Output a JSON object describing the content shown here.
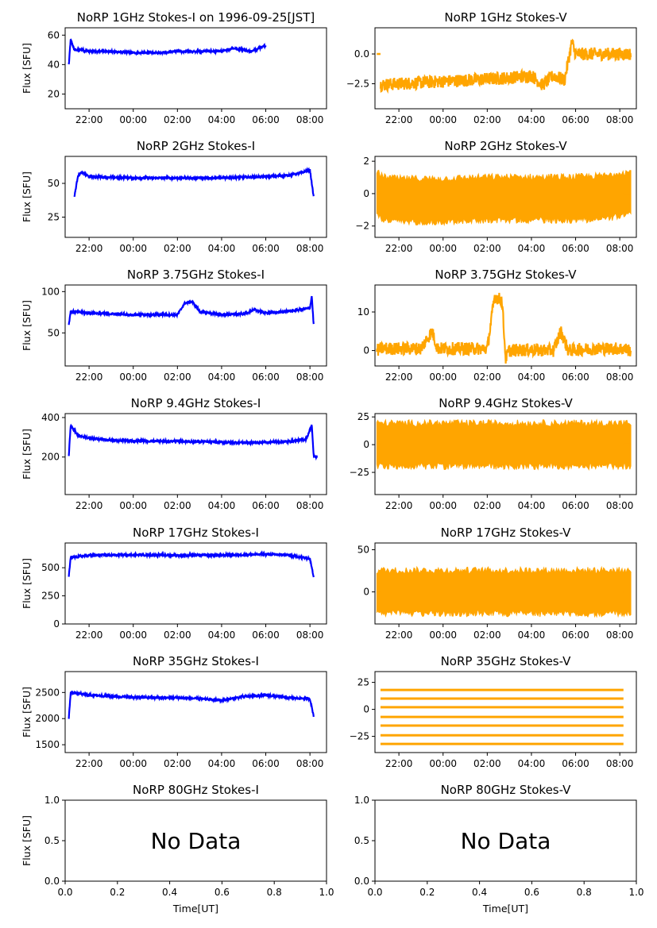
{
  "figure": {
    "main_title": "NoRP 1GHz Stokes-I on 1996-09-25[JST]",
    "colors": {
      "stokes_i": "#0000ff",
      "stokes_v": "#ffa500"
    }
  },
  "chart_data": [
    {
      "id": "p1i",
      "type": "line",
      "title": "NoRP 1GHz Stokes-I on 1996-09-25[JST]",
      "ylabel": "Flux [SFU]",
      "xlabel": "",
      "ylim": [
        10,
        65
      ],
      "yticks": [
        20,
        40,
        60
      ],
      "xticks": [
        "22:00",
        "00:00",
        "02:00",
        "04:00",
        "06:00",
        "08:00"
      ],
      "series": [
        {
          "x": [
            "21:05",
            "21:10",
            "21:20",
            "21:40",
            "22:00",
            "23:00",
            "00:00",
            "01:00",
            "02:00",
            "03:00",
            "04:00",
            "04:30",
            "05:00",
            "05:20",
            "05:40",
            "06:00"
          ],
          "y": [
            40,
            57,
            50,
            50,
            49,
            49,
            48,
            48,
            49,
            49,
            49,
            51,
            50,
            49,
            51,
            53
          ]
        }
      ]
    },
    {
      "id": "p1v",
      "type": "line",
      "title": "NoRP 1GHz Stokes-V",
      "ylabel": "",
      "xlabel": "",
      "ylim": [
        -4.6,
        2.2
      ],
      "yticks": [
        0.0,
        -2.5
      ],
      "ytick_labels": [
        "0.0",
        "−2.5"
      ],
      "xticks": [
        "22:00",
        "00:00",
        "02:00",
        "04:00",
        "06:00",
        "08:00"
      ],
      "series": [
        {
          "x": [
            "21:10",
            "22:00",
            "23:00",
            "00:00",
            "01:00",
            "02:00",
            "03:00",
            "04:00",
            "04:30",
            "05:00",
            "05:30",
            "05:50",
            "06:00",
            "08:30"
          ],
          "y": [
            -2.6,
            -2.5,
            -2.4,
            -2.3,
            -2.2,
            -2.1,
            -2.0,
            -1.8,
            -2.6,
            -1.8,
            -2.2,
            1.0,
            0.0,
            0.0
          ]
        }
      ]
    },
    {
      "id": "p2i",
      "type": "line",
      "title": "NoRP 2GHz Stokes-I",
      "ylabel": "Flux [SFU]",
      "xlabel": "",
      "ylim": [
        10,
        70
      ],
      "yticks": [
        25,
        50
      ],
      "xticks": [
        "22:00",
        "00:00",
        "02:00",
        "04:00",
        "06:00",
        "08:00"
      ],
      "series": [
        {
          "x": [
            "21:20",
            "21:30",
            "21:40",
            "22:00",
            "00:00",
            "02:00",
            "04:00",
            "06:00",
            "07:00",
            "07:40",
            "08:00",
            "08:10"
          ],
          "y": [
            40,
            56,
            58,
            55,
            54,
            54,
            54,
            55,
            56,
            58,
            60,
            40
          ]
        }
      ]
    },
    {
      "id": "p2v",
      "type": "line",
      "title": "NoRP 2GHz Stokes-V",
      "ylabel": "",
      "xlabel": "",
      "ylim": [
        -2.7,
        2.3
      ],
      "yticks": [
        2,
        0,
        -2
      ],
      "ytick_labels": [
        "2",
        "0",
        "−2"
      ],
      "xticks": [
        "22:00",
        "00:00",
        "02:00",
        "04:00",
        "06:00",
        "08:00"
      ],
      "series": [
        {
          "x": [
            "21:00",
            "21:20",
            "22:00",
            "00:00",
            "02:00",
            "04:00",
            "06:00",
            "07:30",
            "08:00",
            "08:30"
          ],
          "y": [
            0.0,
            -0.3,
            -0.4,
            -0.4,
            -0.3,
            -0.3,
            -0.3,
            -0.2,
            0.0,
            0.0
          ]
        }
      ]
    },
    {
      "id": "p3i",
      "type": "line",
      "title": "NoRP 3.75GHz Stokes-I",
      "ylabel": "Flux [SFU]",
      "xlabel": "",
      "ylim": [
        10,
        108
      ],
      "yticks": [
        50,
        100
      ],
      "xticks": [
        "22:00",
        "00:00",
        "02:00",
        "04:00",
        "06:00",
        "08:00"
      ],
      "series": [
        {
          "x": [
            "21:05",
            "21:10",
            "22:00",
            "23:00",
            "00:00",
            "01:00",
            "02:00",
            "02:20",
            "02:40",
            "03:00",
            "04:00",
            "05:00",
            "05:30",
            "06:00",
            "07:00",
            "08:00",
            "08:05",
            "08:10"
          ],
          "y": [
            60,
            76,
            74,
            73,
            72,
            72,
            72,
            86,
            88,
            76,
            72,
            73,
            78,
            74,
            76,
            80,
            95,
            60
          ]
        }
      ]
    },
    {
      "id": "p3v",
      "type": "line",
      "title": "NoRP 3.75GHz Stokes-V",
      "ylabel": "",
      "xlabel": "",
      "ylim": [
        -4,
        17
      ],
      "yticks": [
        10,
        0
      ],
      "xticks": [
        "22:00",
        "00:00",
        "02:00",
        "04:00",
        "06:00",
        "08:00"
      ],
      "series": [
        {
          "x": [
            "21:00",
            "21:10",
            "23:00",
            "23:30",
            "23:45",
            "00:00",
            "02:00",
            "02:20",
            "02:40",
            "02:50",
            "03:00",
            "04:00",
            "05:00",
            "05:20",
            "05:40",
            "06:00",
            "07:00",
            "08:10",
            "08:30"
          ],
          "y": [
            0,
            0.5,
            0.5,
            5,
            0.5,
            0.5,
            0.5,
            14,
            13,
            -2,
            0,
            0.2,
            0,
            5,
            0,
            0.2,
            0.5,
            0.5,
            0
          ]
        }
      ]
    },
    {
      "id": "p4i",
      "type": "line",
      "title": "NoRP 9.4GHz Stokes-I",
      "ylabel": "Flux [SFU]",
      "xlabel": "",
      "ylim": [
        10,
        420
      ],
      "yticks": [
        200,
        400
      ],
      "xticks": [
        "22:00",
        "00:00",
        "02:00",
        "04:00",
        "06:00",
        "08:00"
      ],
      "series": [
        {
          "x": [
            "21:05",
            "21:10",
            "21:30",
            "22:00",
            "23:00",
            "00:00",
            "01:00",
            "02:00",
            "03:00",
            "04:00",
            "05:00",
            "06:00",
            "07:00",
            "07:50",
            "08:05",
            "08:10",
            "08:20"
          ],
          "y": [
            205,
            360,
            310,
            295,
            285,
            282,
            280,
            280,
            278,
            275,
            273,
            275,
            278,
            290,
            365,
            205,
            200
          ]
        }
      ]
    },
    {
      "id": "p4v",
      "type": "line",
      "title": "NoRP 9.4GHz Stokes-V",
      "ylabel": "",
      "xlabel": "",
      "ylim": [
        -45,
        28
      ],
      "yticks": [
        25,
        0,
        -25
      ],
      "ytick_labels": [
        "25",
        "0",
        "−25"
      ],
      "xticks": [
        "22:00",
        "00:00",
        "02:00",
        "04:00",
        "06:00",
        "08:00"
      ],
      "series": [
        {
          "x": [
            "21:00",
            "21:10",
            "00:00",
            "04:00",
            "08:10",
            "08:30"
          ],
          "y": [
            0,
            0,
            0,
            0,
            0,
            0
          ]
        }
      ]
    },
    {
      "id": "p5i",
      "type": "line",
      "title": "NoRP 17GHz Stokes-I",
      "ylabel": "Flux [SFU]",
      "xlabel": "",
      "ylim": [
        0,
        720
      ],
      "yticks": [
        0,
        250,
        500
      ],
      "xticks": [
        "22:00",
        "00:00",
        "02:00",
        "04:00",
        "06:00",
        "08:00"
      ],
      "series": [
        {
          "x": [
            "21:05",
            "21:10",
            "22:00",
            "00:00",
            "02:00",
            "04:00",
            "06:00",
            "07:00",
            "08:00",
            "08:10"
          ],
          "y": [
            420,
            590,
            610,
            615,
            610,
            612,
            620,
            612,
            580,
            420
          ]
        }
      ]
    },
    {
      "id": "p5v",
      "type": "line",
      "title": "NoRP 17GHz Stokes-V",
      "ylabel": "",
      "xlabel": "",
      "ylim": [
        -38,
        58
      ],
      "yticks": [
        50,
        0
      ],
      "xticks": [
        "22:00",
        "00:00",
        "02:00",
        "04:00",
        "06:00",
        "08:00"
      ],
      "series": [
        {
          "x": [
            "21:00",
            "21:10",
            "00:00",
            "04:00",
            "08:10",
            "08:30"
          ],
          "y": [
            0,
            0,
            0,
            0,
            0,
            0
          ]
        }
      ]
    },
    {
      "id": "p6i",
      "type": "line",
      "title": "NoRP 35GHz Stokes-I",
      "ylabel": "Flux [SFU]",
      "xlabel": "",
      "ylim": [
        1350,
        2900
      ],
      "yticks": [
        1500,
        2000,
        2500
      ],
      "xticks": [
        "22:00",
        "00:00",
        "02:00",
        "04:00",
        "06:00",
        "08:00"
      ],
      "series": [
        {
          "x": [
            "21:05",
            "21:10",
            "22:00",
            "23:00",
            "00:00",
            "01:00",
            "02:00",
            "03:00",
            "04:00",
            "05:00",
            "06:00",
            "07:00",
            "08:00",
            "08:10"
          ],
          "y": [
            2000,
            2500,
            2450,
            2430,
            2410,
            2400,
            2400,
            2380,
            2350,
            2420,
            2450,
            2400,
            2380,
            2050
          ]
        }
      ]
    },
    {
      "id": "p6v",
      "type": "line",
      "title": "NoRP 35GHz Stokes-V",
      "ylabel": "",
      "xlabel": "",
      "ylim": [
        -40,
        35
      ],
      "yticks": [
        25,
        0,
        -25
      ],
      "ytick_labels": [
        "25",
        "0",
        "−25"
      ],
      "xticks": [
        "22:00",
        "00:00",
        "02:00",
        "04:00",
        "06:00",
        "08:00"
      ],
      "series": [
        {
          "x": [
            "21:10",
            "08:10"
          ],
          "y": [
            18,
            18
          ]
        },
        {
          "x": [
            "21:10",
            "08:10"
          ],
          "y": [
            10,
            10
          ]
        },
        {
          "x": [
            "21:10",
            "08:10"
          ],
          "y": [
            2,
            2
          ]
        },
        {
          "x": [
            "21:10",
            "08:10"
          ],
          "y": [
            -7,
            -7
          ]
        },
        {
          "x": [
            "21:10",
            "08:10"
          ],
          "y": [
            -15,
            -15
          ]
        },
        {
          "x": [
            "21:10",
            "08:10"
          ],
          "y": [
            -24,
            -24
          ]
        },
        {
          "x": [
            "21:10",
            "08:10"
          ],
          "y": [
            -32,
            -32
          ]
        }
      ]
    },
    {
      "id": "p7i",
      "type": "line",
      "title": "NoRP 80GHz Stokes-I",
      "ylabel": "Flux [SFU]",
      "xlabel": "Time[UT]",
      "annotation": "No Data",
      "xlim": [
        0,
        1
      ],
      "ylim": [
        0,
        1
      ],
      "yticks": [
        0.0,
        0.5,
        1.0
      ],
      "ytick_labels": [
        "0.0",
        "0.5",
        "1.0"
      ],
      "xticks": [
        "0.0",
        "0.2",
        "0.4",
        "0.6",
        "0.8",
        "1.0"
      ],
      "series": []
    },
    {
      "id": "p7v",
      "type": "line",
      "title": "NoRP 80GHz Stokes-V",
      "ylabel": "",
      "xlabel": "Time[UT]",
      "annotation": "No Data",
      "xlim": [
        0,
        1
      ],
      "ylim": [
        0,
        1
      ],
      "yticks": [
        0.0,
        0.5,
        1.0
      ],
      "ytick_labels": [
        "0.0",
        "0.5",
        "1.0"
      ],
      "xticks": [
        "0.0",
        "0.2",
        "0.4",
        "0.6",
        "0.8",
        "1.0"
      ],
      "series": []
    }
  ]
}
